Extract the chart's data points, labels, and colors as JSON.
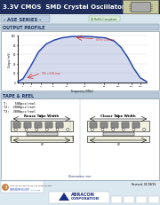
{
  "title": "3.3V CMOS  SMD Crystal Oscillator",
  "series": "- ASE SERIES -",
  "section1": "OUTPUT PROFILE",
  "section2": "TAPE & REEL",
  "tape_reel_items": [
    "T:    500pcs/reel",
    "T2:  2000pcs/reel",
    "T3:  3000pcs/reel"
  ],
  "subsection1": "Reuse Tape Width",
  "subsection2": "Closer Tape Width",
  "footer_url": "www.abracon.com",
  "company1": "ABRACON",
  "company2": "CORPORATION",
  "dimensions_note": "Dimensions: mm",
  "revision": "Revised: 01/08/16",
  "bg_color": "#d8e4ee",
  "header_bg": "#1e2d5a",
  "section_bg": "#b8c8d8",
  "white": "#ffffff",
  "dark_blue": "#1a3060",
  "med_blue": "#4060a0",
  "light_bg": "#eef2f6",
  "chart_line_color": "#2244aa",
  "chart_fill_color": "#8899cc"
}
